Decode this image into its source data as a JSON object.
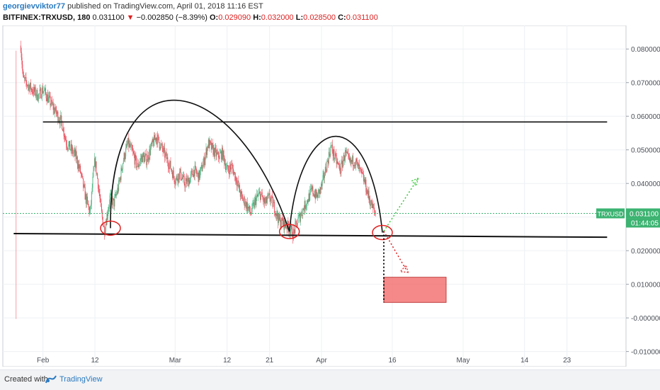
{
  "header": {
    "author": "georgievviktor77",
    "published": "published on TradingView.com, April 01, 2018 11:16 EST",
    "symbol": "BITFINEX:TRXUSD, 180",
    "last": "0.031100",
    "change": "−0.002850 (−8.39%)",
    "o_label": "O:",
    "o_value": "0.029090",
    "h_label": "H:",
    "h_value": "0.032000",
    "l_label": "L:",
    "l_value": "0.028500",
    "c_label": "C:",
    "c_value": "0.031100"
  },
  "footer": {
    "created": "Created with",
    "brand": "TradingView"
  },
  "chart_data": {
    "type": "candlestick",
    "ylim": [
      -0.0145,
      0.087
    ],
    "yticks": [
      "0.080000",
      "0.070000",
      "0.060000",
      "0.050000",
      "0.040000",
      "0.030000",
      "0.020000",
      "0.010000",
      "-0.000000",
      "-0.010000"
    ],
    "ytick_values": [
      0.08,
      0.07,
      0.06,
      0.05,
      0.04,
      0.03,
      0.02,
      0.01,
      0.0,
      -0.01
    ],
    "xticks": [
      "Feb",
      "12",
      "Mar",
      "12",
      "21",
      "Apr",
      "16",
      "May",
      "14",
      "23"
    ],
    "xtick_days": [
      31,
      42,
      59,
      70,
      79,
      90,
      105,
      120,
      133,
      142
    ],
    "xlim_days": [
      22.5,
      154.5
    ],
    "price_label": "TRXUSD",
    "price_value": "0.031100",
    "countdown": "01:44:05",
    "current_price": 0.0311,
    "colors": {
      "up": "#53b987",
      "down": "#eb4d5c",
      "price_line": "#3cb371",
      "box": "#f36c6c"
    },
    "price_path": [
      [
        26.3,
        0.081
      ],
      [
        26.8,
        0.071
      ],
      [
        28,
        0.069
      ],
      [
        30,
        0.066
      ],
      [
        31,
        0.068
      ],
      [
        33,
        0.063
      ],
      [
        35,
        0.058
      ],
      [
        36,
        0.052
      ],
      [
        38,
        0.048
      ],
      [
        39,
        0.043
      ],
      [
        40,
        0.036
      ],
      [
        41,
        0.031
      ],
      [
        41.5,
        0.04
      ],
      [
        42,
        0.047
      ],
      [
        42.6,
        0.041
      ],
      [
        43.3,
        0.032
      ],
      [
        44,
        0.026
      ],
      [
        44.5,
        0.03
      ],
      [
        45.2,
        0.036
      ],
      [
        46,
        0.034
      ],
      [
        47,
        0.039
      ],
      [
        48,
        0.047
      ],
      [
        49,
        0.052
      ],
      [
        50,
        0.049
      ],
      [
        51,
        0.045
      ],
      [
        52,
        0.048
      ],
      [
        53,
        0.047
      ],
      [
        54,
        0.051
      ],
      [
        55,
        0.054
      ],
      [
        56,
        0.051
      ],
      [
        57,
        0.048
      ],
      [
        58,
        0.045
      ],
      [
        59,
        0.041
      ],
      [
        60,
        0.043
      ],
      [
        61,
        0.04
      ],
      [
        62,
        0.041
      ],
      [
        63,
        0.044
      ],
      [
        64,
        0.042
      ],
      [
        65,
        0.046
      ],
      [
        66,
        0.052
      ],
      [
        67,
        0.05
      ],
      [
        68,
        0.048
      ],
      [
        69,
        0.049
      ],
      [
        70,
        0.044
      ],
      [
        71,
        0.045
      ],
      [
        72,
        0.041
      ],
      [
        73,
        0.036
      ],
      [
        74,
        0.034
      ],
      [
        75,
        0.031
      ],
      [
        76,
        0.035
      ],
      [
        77,
        0.037
      ],
      [
        78,
        0.034
      ],
      [
        79,
        0.036
      ],
      [
        80,
        0.033
      ],
      [
        81,
        0.029
      ],
      [
        82,
        0.028
      ],
      [
        83,
        0.027
      ],
      [
        84,
        0.025
      ],
      [
        85,
        0.029
      ],
      [
        86,
        0.032
      ],
      [
        87,
        0.035
      ],
      [
        88,
        0.038
      ],
      [
        89,
        0.036
      ],
      [
        90,
        0.039
      ],
      [
        91,
        0.045
      ],
      [
        92,
        0.051
      ],
      [
        93,
        0.047
      ],
      [
        94,
        0.044
      ],
      [
        95,
        0.049
      ],
      [
        96,
        0.046
      ],
      [
        97,
        0.047
      ],
      [
        98,
        0.044
      ],
      [
        99,
        0.041
      ],
      [
        100,
        0.036
      ],
      [
        101,
        0.032
      ],
      [
        101.5,
        0.0311
      ]
    ],
    "annotations": {
      "resistance": [
        [
          31,
          0.0583
        ],
        [
          150.5,
          0.0583
        ]
      ],
      "support": [
        [
          24.8,
          0.0251
        ],
        [
          150.5,
          0.024
        ]
      ],
      "lows": [
        [
          45.3,
          0.0267
        ],
        [
          83.2,
          0.0257
        ],
        [
          102.9,
          0.0254
        ]
      ],
      "target_box": {
        "day_from": 103.2,
        "day_to": 116.4,
        "top": 0.0121,
        "bottom": 0.0046
      },
      "up_arrow": [
        [
          103.2,
          0.0258
        ],
        [
          110.5,
          0.0416
        ]
      ],
      "down_arrow": [
        [
          103.2,
          0.0258
        ],
        [
          107.9,
          0.0144
        ]
      ]
    }
  }
}
